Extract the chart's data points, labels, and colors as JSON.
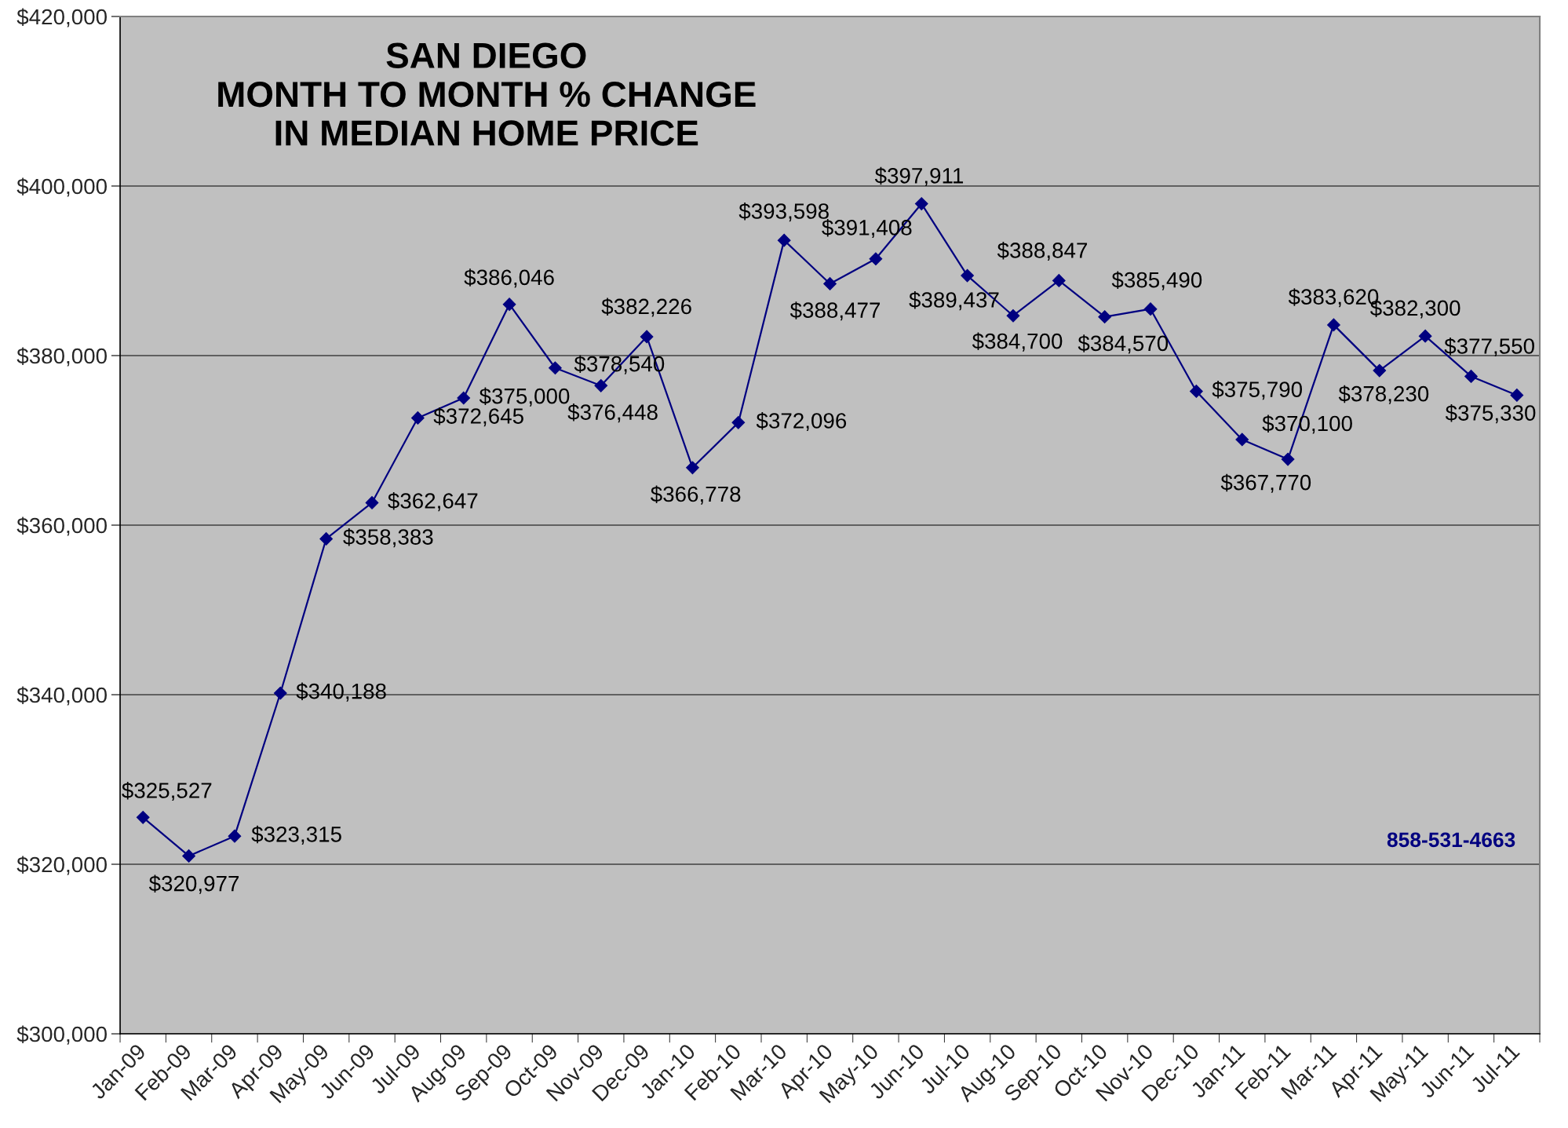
{
  "chart_data": {
    "type": "line",
    "title": "SAN DIEGO\nMONTH TO MONTH % CHANGE\nIN MEDIAN HOME PRICE",
    "categories": [
      "Jan-09",
      "Feb-09",
      "Mar-09",
      "Apr-09",
      "May-09",
      "Jun-09",
      "Jul-09",
      "Aug-09",
      "Sep-09",
      "Oct-09",
      "Nov-09",
      "Dec-09",
      "Jan-10",
      "Feb-10",
      "Mar-10",
      "Apr-10",
      "May-10",
      "Jun-10",
      "Jul-10",
      "Aug-10",
      "Sep-10",
      "Oct-10",
      "Nov-10",
      "Dec-10",
      "Jan-11",
      "Feb-11",
      "Mar-11",
      "Apr-11",
      "May-11",
      "Jun-11",
      "Jul-11"
    ],
    "series": [
      {
        "color": "#000080",
        "values": [
          325527,
          320977,
          323315,
          340188,
          358383,
          362647,
          372645,
          375000,
          386046,
          378540,
          376448,
          382226,
          366778,
          372096,
          393598,
          388477,
          391408,
          397911,
          389437,
          384700,
          388847,
          384570,
          385490,
          375790,
          370100,
          367770,
          383620,
          378230,
          382300,
          377550,
          375330
        ],
        "value_labels": [
          "$325,527",
          "$320,977",
          "$323,315",
          "$340,188",
          "$358,383",
          "$362,647",
          "$372,645",
          "$375,000",
          "$386,046",
          "$378,540",
          "$376,448",
          "$382,226",
          "$366,778",
          "$372,096",
          "$393,598",
          "$388,477",
          "$391,408",
          "$397,911",
          "$389,437",
          "$384,700",
          "$388,847",
          "$384,570",
          "$385,490",
          "$375,790",
          "$370,100",
          "$367,770",
          "$383,620",
          "$378,230",
          "$382,300",
          "$377,550",
          "$375,330"
        ]
      }
    ],
    "marker": "diamond",
    "line_style": "solid",
    "grid": "y",
    "ylim": [
      300000,
      420000
    ],
    "yticks": [
      {
        "value": 300000,
        "label": "$300,000"
      },
      {
        "value": 320000,
        "label": "$320,000"
      },
      {
        "value": 340000,
        "label": "$340,000"
      },
      {
        "value": 360000,
        "label": "$360,000"
      },
      {
        "value": 380000,
        "label": "$380,000"
      },
      {
        "value": 400000,
        "label": "$400,000"
      },
      {
        "value": 420000,
        "label": "$420,000"
      }
    ],
    "annotations": [
      "858-531-4663"
    ]
  }
}
